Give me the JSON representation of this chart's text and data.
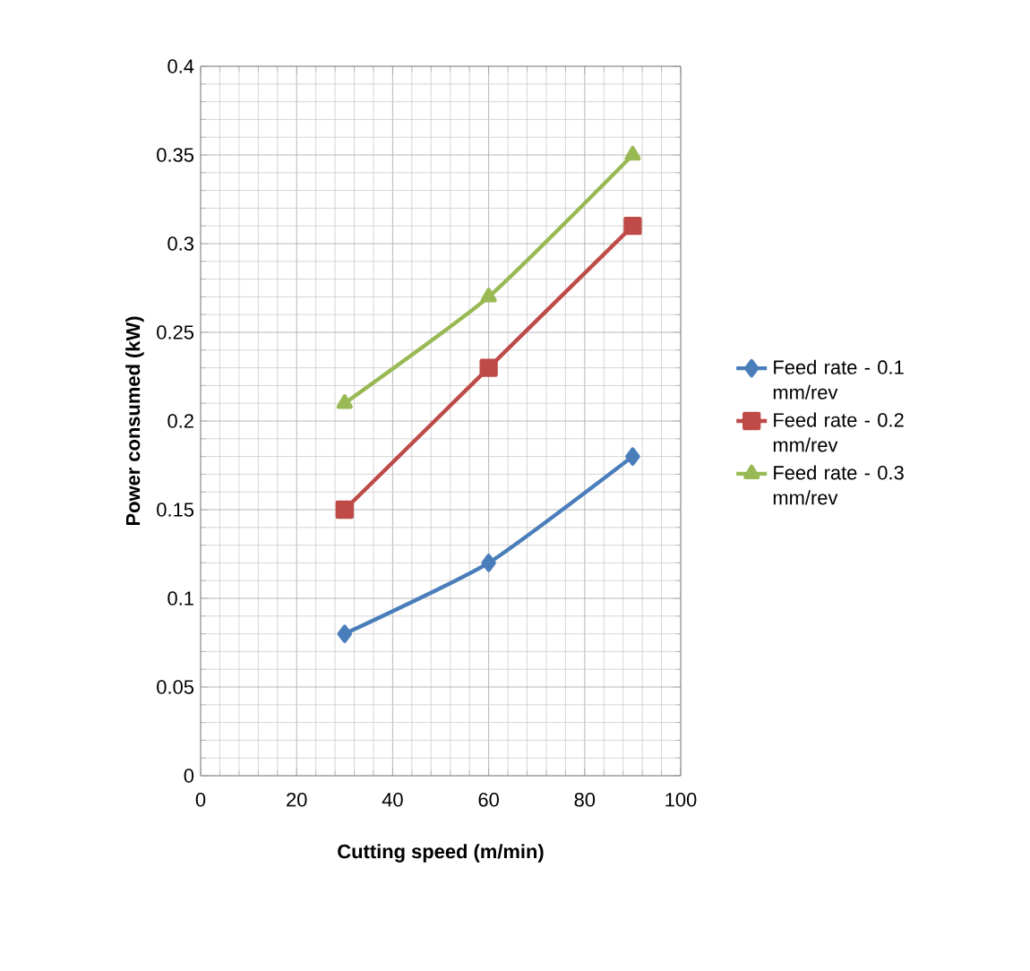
{
  "chart_data": {
    "type": "line",
    "xlabel": "Cutting speed (m/min)",
    "ylabel": "Power consumed  (kW)",
    "x": [
      30,
      60,
      90
    ],
    "series": [
      {
        "name": "Feed rate - 0.1 mm/rev",
        "color": "#4a7ebb",
        "marker": "diamond",
        "values": [
          0.08,
          0.12,
          0.18
        ]
      },
      {
        "name": "Feed rate - 0.2 mm/rev",
        "color": "#be4b48",
        "marker": "square",
        "values": [
          0.15,
          0.23,
          0.31
        ]
      },
      {
        "name": "Feed rate - 0.3 mm/rev",
        "color": "#98b954",
        "marker": "triangle",
        "values": [
          0.21,
          0.27,
          0.35
        ]
      }
    ],
    "xlim": [
      0,
      100
    ],
    "xticks": [
      0,
      20,
      40,
      60,
      80,
      100
    ],
    "ylim": [
      0,
      0.4
    ],
    "yticks": [
      0,
      0.05,
      0.1,
      0.15,
      0.2,
      0.25,
      0.3,
      0.35,
      0.4
    ],
    "grid": true,
    "legend": "right",
    "line_style": "solid"
  }
}
